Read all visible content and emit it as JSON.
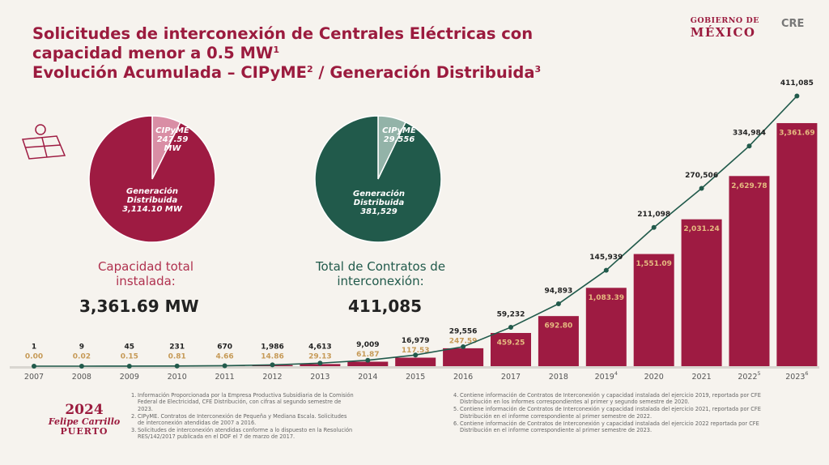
{
  "header": {
    "title": [
      {
        "text": "Solicitudes de interconexión de Centrales Eléctricas con capacidad menor a 0.5 MW",
        "sup": "1"
      },
      {
        "text": "Evolución Acumulada – CIPyME",
        "sup": "2"
      },
      {
        "text": " / Generación Distribuida",
        "sup": "3"
      }
    ]
  },
  "logos": {
    "gobierno_line1": "GOBIERNO DE",
    "gobierno_line2": "MÉXICO",
    "cre": "CRE",
    "year": "2024",
    "name1": "Felipe Carrillo",
    "name2": "PUERTO"
  },
  "summaries": [
    {
      "label": "Capacidad total instalada:",
      "value": "3,361.69 MW"
    },
    {
      "label": "Total de Contratos de interconexión:",
      "value": "411,085"
    }
  ],
  "chart_data": [
    {
      "type": "pie",
      "labels": [
        "CIPyME",
        "Generación Distribuida"
      ],
      "values": [
        247.59,
        3114.1
      ],
      "value_labels": [
        "247.59 MW",
        "3,114.10 MW"
      ],
      "colors": [
        "#d98ea5",
        "#9e1b42"
      ]
    },
    {
      "type": "pie",
      "labels": [
        "CIPyME",
        "Generación Distribuida"
      ],
      "values": [
        29556,
        381529
      ],
      "value_labels": [
        "29,556",
        "381,529"
      ],
      "colors": [
        "#93b3a8",
        "#215a4b"
      ]
    },
    {
      "type": "bar_line",
      "categories": [
        "2007",
        "2008",
        "2009",
        "2010",
        "2011",
        "2012",
        "2013",
        "2014",
        "2015",
        "2016",
        "2017",
        "2018",
        "2019",
        "2020",
        "2021",
        "2022",
        "2023"
      ],
      "category_notes": [
        null,
        null,
        null,
        null,
        null,
        null,
        null,
        null,
        null,
        null,
        null,
        null,
        "4",
        null,
        null,
        "5",
        "6"
      ],
      "ylim": [
        0,
        4000
      ],
      "y2lim": [
        0,
        440000
      ],
      "series": [
        {
          "type": "bar",
          "color": "#9e1b42",
          "values": [
            0.0,
            0.02,
            0.15,
            0.81,
            4.66,
            14.86,
            29.13,
            61.87,
            117.53,
            247.59,
            459.25,
            692.8,
            1083.39,
            1551.09,
            2031.24,
            2629.78,
            3361.69
          ],
          "value_labels": [
            "0.00",
            "0.02",
            "0.15",
            "0.81",
            "4.66",
            "14.86",
            "29.13",
            "61.87",
            "117.53",
            "247.59",
            "459.25",
            "692.80",
            "1,083.39",
            "1,551.09",
            "2,031.24",
            "2,629.78",
            "3,361.69"
          ]
        },
        {
          "type": "line",
          "axis": "y2",
          "color": "#215a4b",
          "values": [
            1,
            9,
            45,
            231,
            670,
            1986,
            4613,
            9009,
            16979,
            29556,
            59232,
            94893,
            145939,
            211098,
            270506,
            334984,
            411085
          ],
          "value_labels": [
            "1",
            "9",
            "45",
            "231",
            "670",
            "1,986",
            "4,613",
            "9,009",
            "16,979",
            "29,556",
            "59,232",
            "94,893",
            "145,939",
            "211,098",
            "270,506",
            "334,984",
            "411,085"
          ]
        }
      ]
    }
  ],
  "footnotes": [
    {
      "number": "1.",
      "text": "Información Proporcionada por la Empresa Productiva Subsidiaria de la Comisión Federal de Electricidad, CFE Distribución, con cifras al segundo semestre de 2023."
    },
    {
      "number": "2.",
      "text": "CIPyME. Contratos de Interconexión de Pequeña y Mediana Escala. Solicitudes de interconexión atendidas de 2007 a 2016."
    },
    {
      "number": "3.",
      "text": "Solicitudes de interconexión atendidas conforme a lo dispuesto en la Resolución RES/142/2017 publicada en el DOF el 7 de marzo de 2017."
    },
    {
      "number": "4.",
      "text": "Contiene información de Contratos de Interconexión y capacidad instalada del ejercicio 2019, reportada por CFE Distribución en los informes correspondientes al primer y segundo semestre de 2020."
    },
    {
      "number": "5.",
      "text": "Contiene información de Contratos de Interconexión y capacidad instalada del ejercicio 2021, reportada por CFE Distribución en el informe correspondiente al primer semestre de 2022."
    },
    {
      "number": "6.",
      "text": "Contiene información de Contratos de Interconexión y capacidad instalada del ejercicio 2022 reportada por CFE Distribución en el informe correspondiente al primer semestre de 2023."
    }
  ]
}
